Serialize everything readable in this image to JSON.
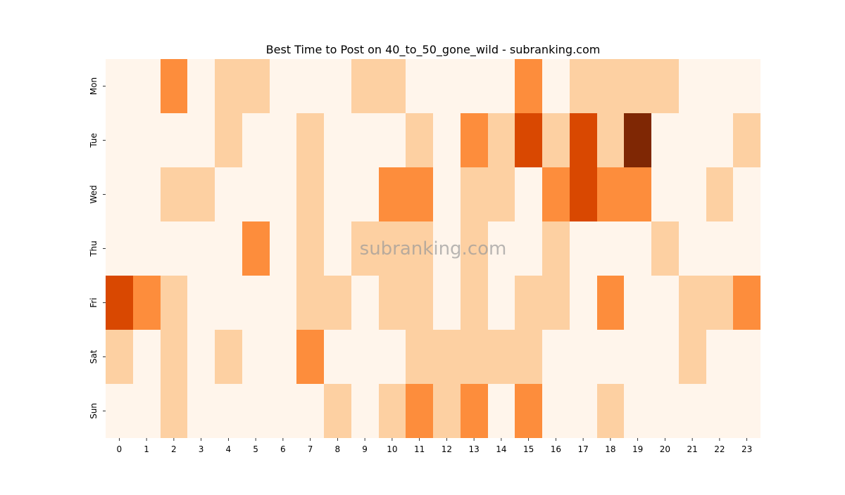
{
  "chart_data": {
    "type": "heatmap",
    "title": "Best Time to Post on 40_to_50_gone_wild - subranking.com",
    "watermark": "subranking.com",
    "xlabel": "",
    "ylabel": "",
    "x": [
      "0",
      "1",
      "2",
      "3",
      "4",
      "5",
      "6",
      "7",
      "8",
      "9",
      "10",
      "11",
      "12",
      "13",
      "14",
      "15",
      "16",
      "17",
      "18",
      "19",
      "20",
      "21",
      "22",
      "23"
    ],
    "y": [
      "Mon",
      "Tue",
      "Wed",
      "Thu",
      "Fri",
      "Sat",
      "Sun"
    ],
    "values": [
      [
        0,
        0,
        2,
        0,
        1,
        1,
        0,
        0,
        0,
        1,
        1,
        0,
        0,
        0,
        0,
        2,
        0,
        1,
        1,
        1,
        1,
        0,
        0,
        0
      ],
      [
        0,
        0,
        0,
        0,
        1,
        0,
        0,
        1,
        0,
        0,
        0,
        1,
        0,
        2,
        1,
        3,
        1,
        3,
        1,
        4,
        0,
        0,
        0,
        1
      ],
      [
        0,
        0,
        1,
        1,
        0,
        0,
        0,
        1,
        0,
        0,
        2,
        2,
        0,
        1,
        1,
        0,
        2,
        3,
        2,
        2,
        0,
        0,
        1,
        0
      ],
      [
        0,
        0,
        0,
        0,
        0,
        2,
        0,
        1,
        0,
        1,
        1,
        1,
        0,
        1,
        0,
        0,
        1,
        0,
        0,
        0,
        1,
        0,
        0,
        0
      ],
      [
        3,
        2,
        1,
        0,
        0,
        0,
        0,
        1,
        1,
        0,
        1,
        1,
        0,
        1,
        0,
        1,
        1,
        0,
        2,
        0,
        0,
        1,
        1,
        2
      ],
      [
        1,
        0,
        1,
        0,
        1,
        0,
        0,
        2,
        0,
        0,
        0,
        1,
        1,
        1,
        1,
        1,
        0,
        0,
        0,
        0,
        0,
        1,
        0,
        0
      ],
      [
        0,
        0,
        1,
        0,
        0,
        0,
        0,
        0,
        1,
        0,
        1,
        2,
        1,
        2,
        0,
        2,
        0,
        0,
        1,
        0,
        0,
        0,
        0,
        0
      ]
    ],
    "colormap": "Oranges",
    "colors": [
      "#fff5eb",
      "#fdd0a2",
      "#fd8d3c",
      "#d94801",
      "#7f2704"
    ],
    "grid": false,
    "legend": "none"
  }
}
